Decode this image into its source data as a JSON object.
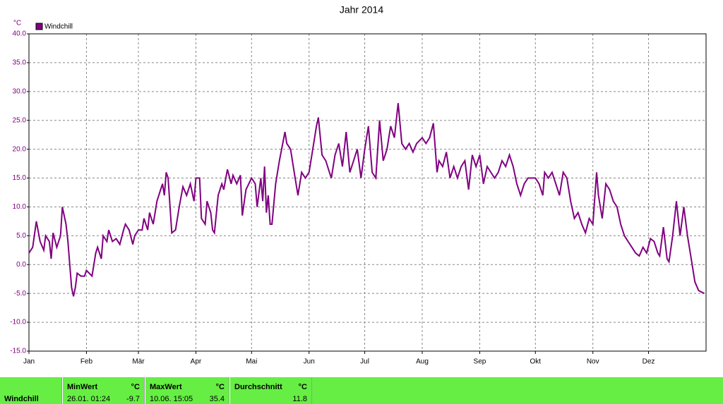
{
  "chart_data": {
    "type": "line",
    "title": "Jahr 2014",
    "y_unit": "°C",
    "xlim": [
      1,
      366
    ],
    "ylim": [
      -15,
      40
    ],
    "xticks": [
      {
        "value": 1,
        "label": "Jan"
      },
      {
        "value": 32,
        "label": "Feb"
      },
      {
        "value": 60,
        "label": "Mär"
      },
      {
        "value": 91,
        "label": "Apr"
      },
      {
        "value": 121,
        "label": "Mai"
      },
      {
        "value": 152,
        "label": "Jun"
      },
      {
        "value": 182,
        "label": "Jul"
      },
      {
        "value": 213,
        "label": "Aug"
      },
      {
        "value": 244,
        "label": "Sep"
      },
      {
        "value": 274,
        "label": "Okt"
      },
      {
        "value": 305,
        "label": "Nov"
      },
      {
        "value": 335,
        "label": "Dez"
      }
    ],
    "yticks": [
      {
        "value": 40,
        "label": "40.0"
      },
      {
        "value": 35,
        "label": "35.0"
      },
      {
        "value": 30,
        "label": "30.0"
      },
      {
        "value": 25,
        "label": "25.0"
      },
      {
        "value": 20,
        "label": "20.0"
      },
      {
        "value": 15,
        "label": "15.0"
      },
      {
        "value": 10,
        "label": "10.0"
      },
      {
        "value": 5,
        "label": "5.0"
      },
      {
        "value": 0,
        "label": "0.0"
      },
      {
        "value": -5,
        "label": "-5.0"
      },
      {
        "value": -10,
        "label": "-10.0"
      },
      {
        "value": -15,
        "label": "-15.0"
      }
    ],
    "grid": true,
    "x": [
      1,
      3,
      5,
      7,
      9,
      10,
      12,
      13,
      14,
      16,
      18,
      19,
      21,
      22,
      23,
      24,
      25,
      26,
      27,
      29,
      31,
      32,
      35,
      37,
      38,
      40,
      41,
      43,
      44,
      46,
      48,
      50,
      52,
      53,
      55,
      57,
      58,
      60,
      62,
      63,
      65,
      66,
      68,
      70,
      72,
      73,
      74,
      75,
      76,
      78,
      80,
      82,
      84,
      86,
      88,
      90,
      91,
      93,
      94,
      96,
      97,
      99,
      100,
      101,
      103,
      105,
      106,
      108,
      110,
      111,
      113,
      115,
      116,
      118,
      121,
      123,
      124,
      126,
      127,
      128,
      129,
      130,
      131,
      132,
      134,
      136,
      139,
      140,
      142,
      144,
      146,
      148,
      150,
      152,
      154,
      156,
      157,
      159,
      161,
      163,
      164,
      166,
      168,
      170,
      172,
      174,
      176,
      178,
      180,
      182,
      184,
      186,
      188,
      190,
      192,
      194,
      196,
      198,
      200,
      202,
      204,
      206,
      208,
      210,
      213,
      215,
      217,
      219,
      221,
      222,
      224,
      226,
      228,
      230,
      232,
      234,
      236,
      238,
      240,
      242,
      244,
      246,
      248,
      250,
      252,
      254,
      256,
      258,
      260,
      262,
      264,
      266,
      268,
      270,
      272,
      274,
      276,
      278,
      279,
      281,
      283,
      285,
      287,
      289,
      291,
      293,
      295,
      297,
      299,
      301,
      303,
      305,
      307,
      308,
      310,
      312,
      314,
      316,
      318,
      320,
      322,
      324,
      326,
      328,
      330,
      332,
      334,
      336,
      338,
      340,
      341,
      343,
      345,
      346,
      348,
      350,
      352,
      354,
      356,
      358,
      360,
      362,
      365
    ],
    "series": [
      {
        "name": "Windchill",
        "color": "#800080",
        "values": [
          2,
          3,
          7.5,
          4,
          2.5,
          5,
          4,
          1,
          5.5,
          3,
          5,
          10,
          7,
          4,
          0,
          -4,
          -5.5,
          -4,
          -1.5,
          -2,
          -2,
          -1,
          -2,
          2,
          3,
          1,
          5,
          4,
          6,
          4,
          4.5,
          3.5,
          6,
          7,
          6,
          3.5,
          5,
          6,
          6,
          8,
          6,
          9,
          7,
          11,
          13,
          14,
          12,
          16,
          15,
          5.5,
          6,
          10,
          13.5,
          12,
          14,
          11,
          15,
          15,
          8,
          7,
          11,
          9,
          6,
          5.5,
          12,
          14,
          13,
          16.5,
          14,
          15.5,
          14,
          15.5,
          8.5,
          13,
          15,
          14,
          10,
          15,
          11,
          17,
          9,
          12,
          7,
          7,
          14,
          18,
          23,
          21,
          20,
          16,
          12,
          16,
          15,
          16,
          20,
          24,
          25.5,
          19,
          18,
          16,
          15,
          19,
          21,
          17,
          23,
          16,
          18,
          20,
          15,
          20,
          24,
          16,
          15,
          25,
          18,
          20,
          24,
          22,
          28,
          21,
          20,
          21,
          19.5,
          21,
          22,
          21,
          22,
          24.5,
          16,
          18,
          17,
          19.5,
          15,
          17,
          15,
          17,
          18,
          13,
          19,
          17,
          19,
          14,
          17,
          16,
          15,
          16,
          18,
          17,
          19,
          17,
          14,
          12,
          14,
          15,
          15,
          15,
          14,
          12,
          16,
          15,
          16,
          14,
          12,
          16,
          15,
          11,
          8,
          9,
          7,
          5.5,
          8,
          7,
          16,
          12,
          8,
          14,
          13,
          11,
          10,
          7,
          5,
          4,
          3,
          2,
          1.5,
          3,
          2,
          4.5,
          4,
          2,
          1.5,
          6.5,
          1,
          0.5,
          5,
          11,
          5,
          10,
          5,
          1,
          -3,
          -4.5,
          -5
        ]
      }
    ]
  },
  "stats": {
    "label": "Windchill",
    "min": {
      "title": "MinWert",
      "unit": "°C",
      "time": "26.01.  01:24",
      "value": "-9.7"
    },
    "max": {
      "title": "MaxWert",
      "unit": "°C",
      "time": "10.06.  15:05",
      "value": "35.4"
    },
    "avg": {
      "title": "Durchschnitt",
      "unit": "°C",
      "value": "11.8"
    }
  }
}
